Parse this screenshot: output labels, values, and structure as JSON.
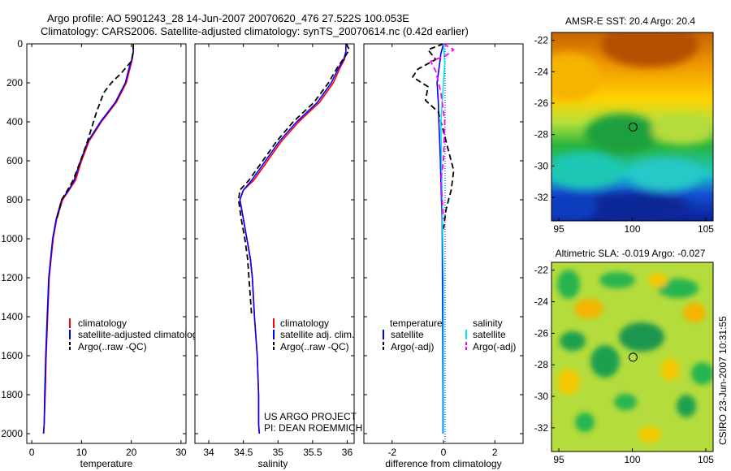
{
  "header": {
    "line1": "Argo profile: AO 5901243_28 14-Jun-2007 20070620_476 27.522S 100.053E",
    "line2": "Climatology: CARS2006. Satellite-adjusted climatology: synTS_20070614.nc (0.42d earlier)"
  },
  "side_stamp": "CSIRO 23-Jun-2007 10:31:55",
  "credits": {
    "line1": "US ARGO PROJECT",
    "line2": "PI: DEAN ROEMMICH"
  },
  "colors": {
    "climatology": "#ff0000",
    "satellite": "#0000ff",
    "argo": "#000000",
    "sat_salinity": "#00e5ee",
    "argo_salinity": "#ff00ff",
    "zero_line": "#0000ff"
  },
  "chart_data": [
    {
      "id": "temperature",
      "type": "line",
      "xlabel": "temperature",
      "ylabel": "",
      "xlim": [
        -1,
        31
      ],
      "ylim": [
        2050,
        0
      ],
      "xticks": [
        0,
        10,
        20,
        30
      ],
      "yticks": [
        0,
        200,
        400,
        600,
        800,
        1000,
        1200,
        1400,
        1600,
        1800,
        2000
      ],
      "legend": [
        "climatology",
        "satellite-adjusted climatology",
        "Argo(..raw -QC)"
      ],
      "series": [
        {
          "name": "climatology",
          "color": "#ff0000",
          "dash": "",
          "x": [
            20.4,
            20.4,
            20.2,
            19.8,
            19.0,
            17.0,
            14.0,
            11.5,
            10.0,
            8.8,
            7.5,
            6.2,
            5.0,
            4.3,
            3.9,
            3.5,
            3.2,
            2.9,
            2.7,
            2.5,
            2.4
          ],
          "y": [
            0,
            40,
            80,
            120,
            200,
            300,
            400,
            500,
            600,
            700,
            750,
            800,
            900,
            1000,
            1100,
            1200,
            1400,
            1600,
            1800,
            1950,
            2000
          ]
        },
        {
          "name": "satellite-adjusted climatology",
          "color": "#0000ff",
          "dash": "",
          "x": [
            20.4,
            20.4,
            20.1,
            19.6,
            18.8,
            16.8,
            13.8,
            11.3,
            9.8,
            8.5,
            7.4,
            6.0,
            4.9,
            4.2,
            3.8,
            3.4,
            3.1,
            2.8,
            2.6,
            2.5,
            2.35
          ],
          "y": [
            0,
            40,
            80,
            120,
            200,
            300,
            400,
            500,
            600,
            700,
            750,
            800,
            900,
            1000,
            1100,
            1200,
            1400,
            1600,
            1800,
            1950,
            2000
          ]
        },
        {
          "name": "Argo(..raw -QC)",
          "color": "#000000",
          "dash": "7,4",
          "x": [
            20.4,
            20.4,
            20.0,
            18.0,
            16.0,
            14.5,
            13.0,
            11.2,
            9.8,
            8.3,
            7.2,
            6.0,
            5.0
          ],
          "y": [
            0,
            40,
            90,
            150,
            200,
            250,
            350,
            500,
            600,
            700,
            750,
            800,
            900
          ]
        }
      ]
    },
    {
      "id": "salinity",
      "type": "line",
      "xlabel": "salinity",
      "xlim": [
        33.8,
        36.1
      ],
      "ylim": [
        2050,
        0
      ],
      "xticks": [
        34,
        34.5,
        35,
        35.5,
        36
      ],
      "xtick_labels": [
        "34",
        "34.5",
        "35",
        "35.5",
        "36"
      ],
      "legend": [
        "climatology",
        "satellite adj. clim.",
        "Argo(..raw -QC)"
      ],
      "series": [
        {
          "name": "climatology",
          "color": "#ff0000",
          "dash": "",
          "x": [
            35.98,
            35.98,
            35.96,
            35.9,
            35.8,
            35.6,
            35.3,
            35.05,
            34.85,
            34.65,
            34.5,
            34.45,
            34.5,
            34.55,
            34.6,
            34.63,
            34.66,
            34.7,
            34.72,
            34.72,
            34.73
          ],
          "y": [
            0,
            40,
            80,
            120,
            200,
            300,
            400,
            500,
            600,
            700,
            750,
            800,
            900,
            1000,
            1100,
            1200,
            1400,
            1600,
            1800,
            1950,
            2000
          ]
        },
        {
          "name": "satellite adj. clim.",
          "color": "#0000ff",
          "dash": "",
          "x": [
            35.98,
            35.98,
            35.95,
            35.88,
            35.77,
            35.57,
            35.27,
            35.02,
            34.82,
            34.62,
            34.5,
            34.45,
            34.5,
            34.55,
            34.6,
            34.63,
            34.66,
            34.7,
            34.72,
            34.72,
            34.73
          ],
          "y": [
            0,
            40,
            80,
            120,
            200,
            300,
            400,
            500,
            600,
            700,
            750,
            800,
            900,
            1000,
            1100,
            1200,
            1400,
            1600,
            1800,
            1950,
            2000
          ]
        },
        {
          "name": "Argo(..raw -QC)",
          "color": "#000000",
          "dash": "7,4",
          "x": [
            35.99,
            36.03,
            35.96,
            35.86,
            35.73,
            35.52,
            35.22,
            34.98,
            34.78,
            34.58,
            34.45,
            34.43,
            34.47,
            34.52,
            34.56,
            34.58,
            34.6,
            34.62
          ],
          "y": [
            0,
            30,
            70,
            120,
            200,
            300,
            400,
            500,
            600,
            700,
            750,
            800,
            900,
            1000,
            1100,
            1200,
            1300,
            1400
          ]
        }
      ]
    },
    {
      "id": "difference",
      "type": "line",
      "xlabel": "difference from climatology",
      "xlim": [
        -3.1,
        3.1
      ],
      "ylim": [
        2050,
        0
      ],
      "xticks": [
        -2,
        0,
        2
      ],
      "legend_left": {
        "title": "temperature",
        "items": [
          "satellite",
          "Argo(-adj)"
        ]
      },
      "legend_right": {
        "title": "salinity",
        "items": [
          "satellite",
          "Argo(-adj)"
        ]
      },
      "series": [
        {
          "name": "temperature satellite",
          "color": "#0000ff",
          "dash": "",
          "x": [
            0.0,
            -0.1,
            -0.15,
            -0.2,
            -0.25,
            -0.2,
            -0.18,
            -0.15,
            -0.12,
            -0.1,
            -0.08,
            -0.05,
            -0.04,
            -0.03,
            -0.02,
            -0.02
          ],
          "y": [
            0,
            50,
            100,
            150,
            200,
            300,
            400,
            500,
            600,
            700,
            800,
            900,
            1200,
            1500,
            1800,
            2000
          ]
        },
        {
          "name": "temperature Argo(-adj)",
          "color": "#000000",
          "dash": "7,4",
          "x": [
            0.0,
            -0.6,
            -0.3,
            -1.0,
            -1.2,
            -0.6,
            -0.7,
            -0.2,
            0.1,
            0.2,
            0.4,
            0.3,
            0.2,
            0.1,
            0.05,
            0.0
          ],
          "y": [
            0,
            30,
            80,
            130,
            170,
            220,
            290,
            350,
            500,
            550,
            650,
            750,
            800,
            850,
            900,
            950
          ]
        },
        {
          "name": "salinity satellite",
          "color": "#00e5ee",
          "dash": "",
          "x": [
            0.0,
            0.05,
            0.0,
            -0.05,
            -0.1,
            -0.08,
            -0.05,
            -0.03,
            0.0,
            0.0,
            0.0,
            0.0
          ],
          "y": [
            0,
            100,
            200,
            300,
            400,
            600,
            800,
            1000,
            1200,
            1500,
            1800,
            2000
          ]
        },
        {
          "name": "salinity Argo(-adj)",
          "color": "#ff00ff",
          "dash": "7,4",
          "x": [
            0.0,
            0.4,
            0.1,
            -0.5,
            -0.3,
            -0.1,
            0.05,
            0.0,
            -0.1,
            -0.05,
            0.0
          ],
          "y": [
            0,
            30,
            60,
            90,
            140,
            250,
            400,
            600,
            700,
            800,
            900
          ]
        }
      ]
    },
    {
      "id": "sst_map",
      "type": "heatmap",
      "title": "AMSR-E SST: 20.4 Argo: 20.4",
      "xlim": [
        94.5,
        105.5
      ],
      "ylim": [
        -33.5,
        -21.5
      ],
      "xticks": [
        95,
        100,
        105
      ],
      "yticks": [
        -22,
        -24,
        -26,
        -28,
        -30,
        -32
      ],
      "marker": {
        "lon": 100.05,
        "lat": -27.52
      }
    },
    {
      "id": "sla_map",
      "type": "heatmap",
      "title": "Altimetric SLA: -0.019 Argo: -0.027",
      "xlim": [
        94.5,
        105.5
      ],
      "ylim": [
        -33.5,
        -21.5
      ],
      "xticks": [
        95,
        100,
        105
      ],
      "yticks": [
        -22,
        -24,
        -26,
        -28,
        -30,
        -32
      ],
      "marker": {
        "lon": 100.05,
        "lat": -27.52
      }
    }
  ]
}
